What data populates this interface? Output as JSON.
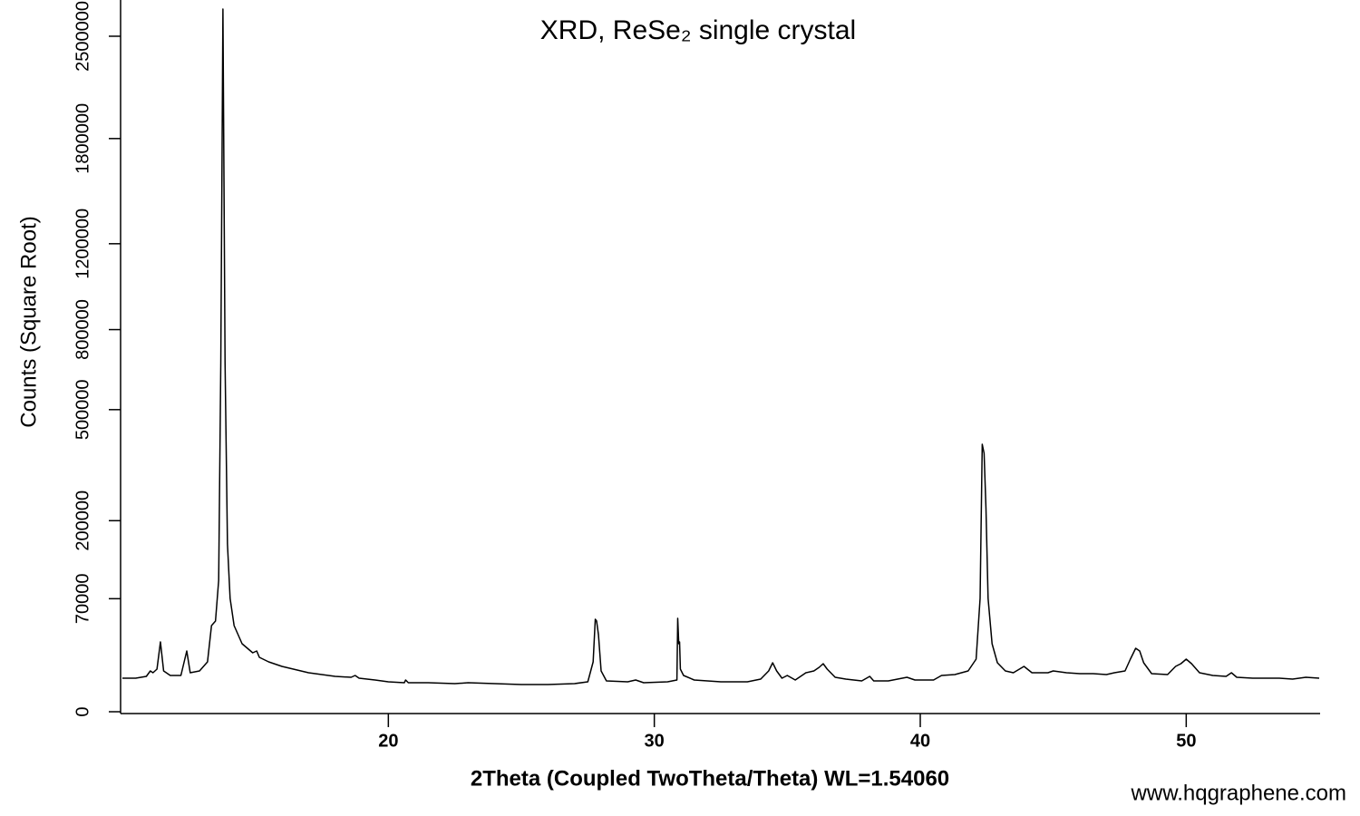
{
  "chart_data": {
    "type": "line",
    "title": "XRD, ReSe₂ single crystal",
    "x_label": "2Theta (Coupled TwoTheta/Theta) WL=1.54060",
    "y_label": "Counts (Square Root)",
    "watermark": "www.hqgraphene.com",
    "color": "#000000",
    "yscale": "sqrt",
    "xlim": [
      10,
      55
    ],
    "ylim": [
      0,
      2750000
    ],
    "xticks": [
      20,
      30,
      40,
      50
    ],
    "yticks": [
      0,
      70000,
      200000,
      500000,
      800000,
      1200000,
      1800000,
      2500000
    ],
    "x": [
      10.0,
      10.5,
      10.9,
      11.05,
      11.15,
      11.3,
      11.43,
      11.55,
      11.8,
      12.2,
      12.42,
      12.55,
      12.9,
      13.2,
      13.35,
      13.5,
      13.62,
      13.7,
      13.78,
      13.82,
      13.86,
      13.95,
      14.05,
      14.2,
      14.5,
      14.9,
      15.05,
      15.15,
      15.5,
      16,
      17,
      18,
      18.6,
      18.75,
      18.9,
      19.5,
      20,
      20.6,
      20.65,
      20.75,
      21.5,
      22.5,
      23,
      24,
      25,
      26,
      27,
      27.5,
      27.7,
      27.78,
      27.83,
      27.9,
      28.0,
      28.2,
      29,
      29.3,
      29.6,
      30.5,
      30.85,
      30.88,
      30.92,
      30.95,
      30.98,
      31.1,
      31.5,
      32.5,
      33.5,
      34.0,
      34.3,
      34.45,
      34.6,
      34.8,
      35.0,
      35.3,
      35.7,
      36.0,
      36.2,
      36.35,
      36.5,
      36.8,
      37.2,
      37.8,
      38.1,
      38.25,
      38.8,
      39.5,
      39.8,
      40.5,
      40.8,
      41.3,
      41.8,
      42.1,
      42.25,
      42.33,
      42.4,
      42.47,
      42.55,
      42.7,
      42.9,
      43.2,
      43.5,
      43.9,
      44.2,
      44.8,
      45.0,
      45.5,
      46,
      46.5,
      47,
      47.3,
      47.7,
      47.9,
      48.1,
      48.25,
      48.4,
      48.7,
      49.3,
      49.6,
      49.8,
      50.0,
      50.2,
      50.5,
      51,
      51.5,
      51.7,
      51.9,
      52.5,
      53.5,
      54,
      54.5,
      55
    ],
    "values": [
      6166,
      6166,
      6850,
      9120,
      8328,
      9949,
      26704,
      9120,
      7206,
      7206,
      20218,
      8328,
      9120,
      13624,
      40647,
      45038,
      94693,
      667548,
      2705038,
      1541318,
      667548,
      154144,
      70374,
      40647,
      25334,
      19029,
      20218,
      16214,
      13624,
      11259,
      8328,
      6850,
      6503,
      7206,
      6166,
      5518,
      4905,
      4612,
      5518,
      4612,
      4612,
      4328,
      4612,
      4328,
      4053,
      4053,
      4328,
      4905,
      13624,
      46857,
      45038,
      32541,
      9120,
      5206,
      4905,
      5518,
      4612,
      4905,
      5518,
      47782,
      25334,
      26704,
      9949,
      7206,
      5518,
      4905,
      4905,
      5837,
      9120,
      13133,
      9120,
      6166,
      7206,
      5518,
      8328,
      9120,
      10814,
      12651,
      9949,
      6503,
      5837,
      5206,
      6850,
      5206,
      5206,
      6503,
      5518,
      5518,
      7206,
      7571,
      9120,
      15151,
      70374,
      391948,
      365814,
      228004,
      70374,
      25334,
      13133,
      9120,
      8328,
      11259,
      8328,
      8328,
      9120,
      8328,
      7944,
      7944,
      7571,
      8328,
      9120,
      15151,
      22069,
      20218,
      13133,
      7944,
      7571,
      11259,
      12651,
      15151,
      12651,
      8328,
      7206,
      6850,
      8328,
      6503,
      6166,
      6166,
      5837,
      6503,
      6166
    ]
  }
}
